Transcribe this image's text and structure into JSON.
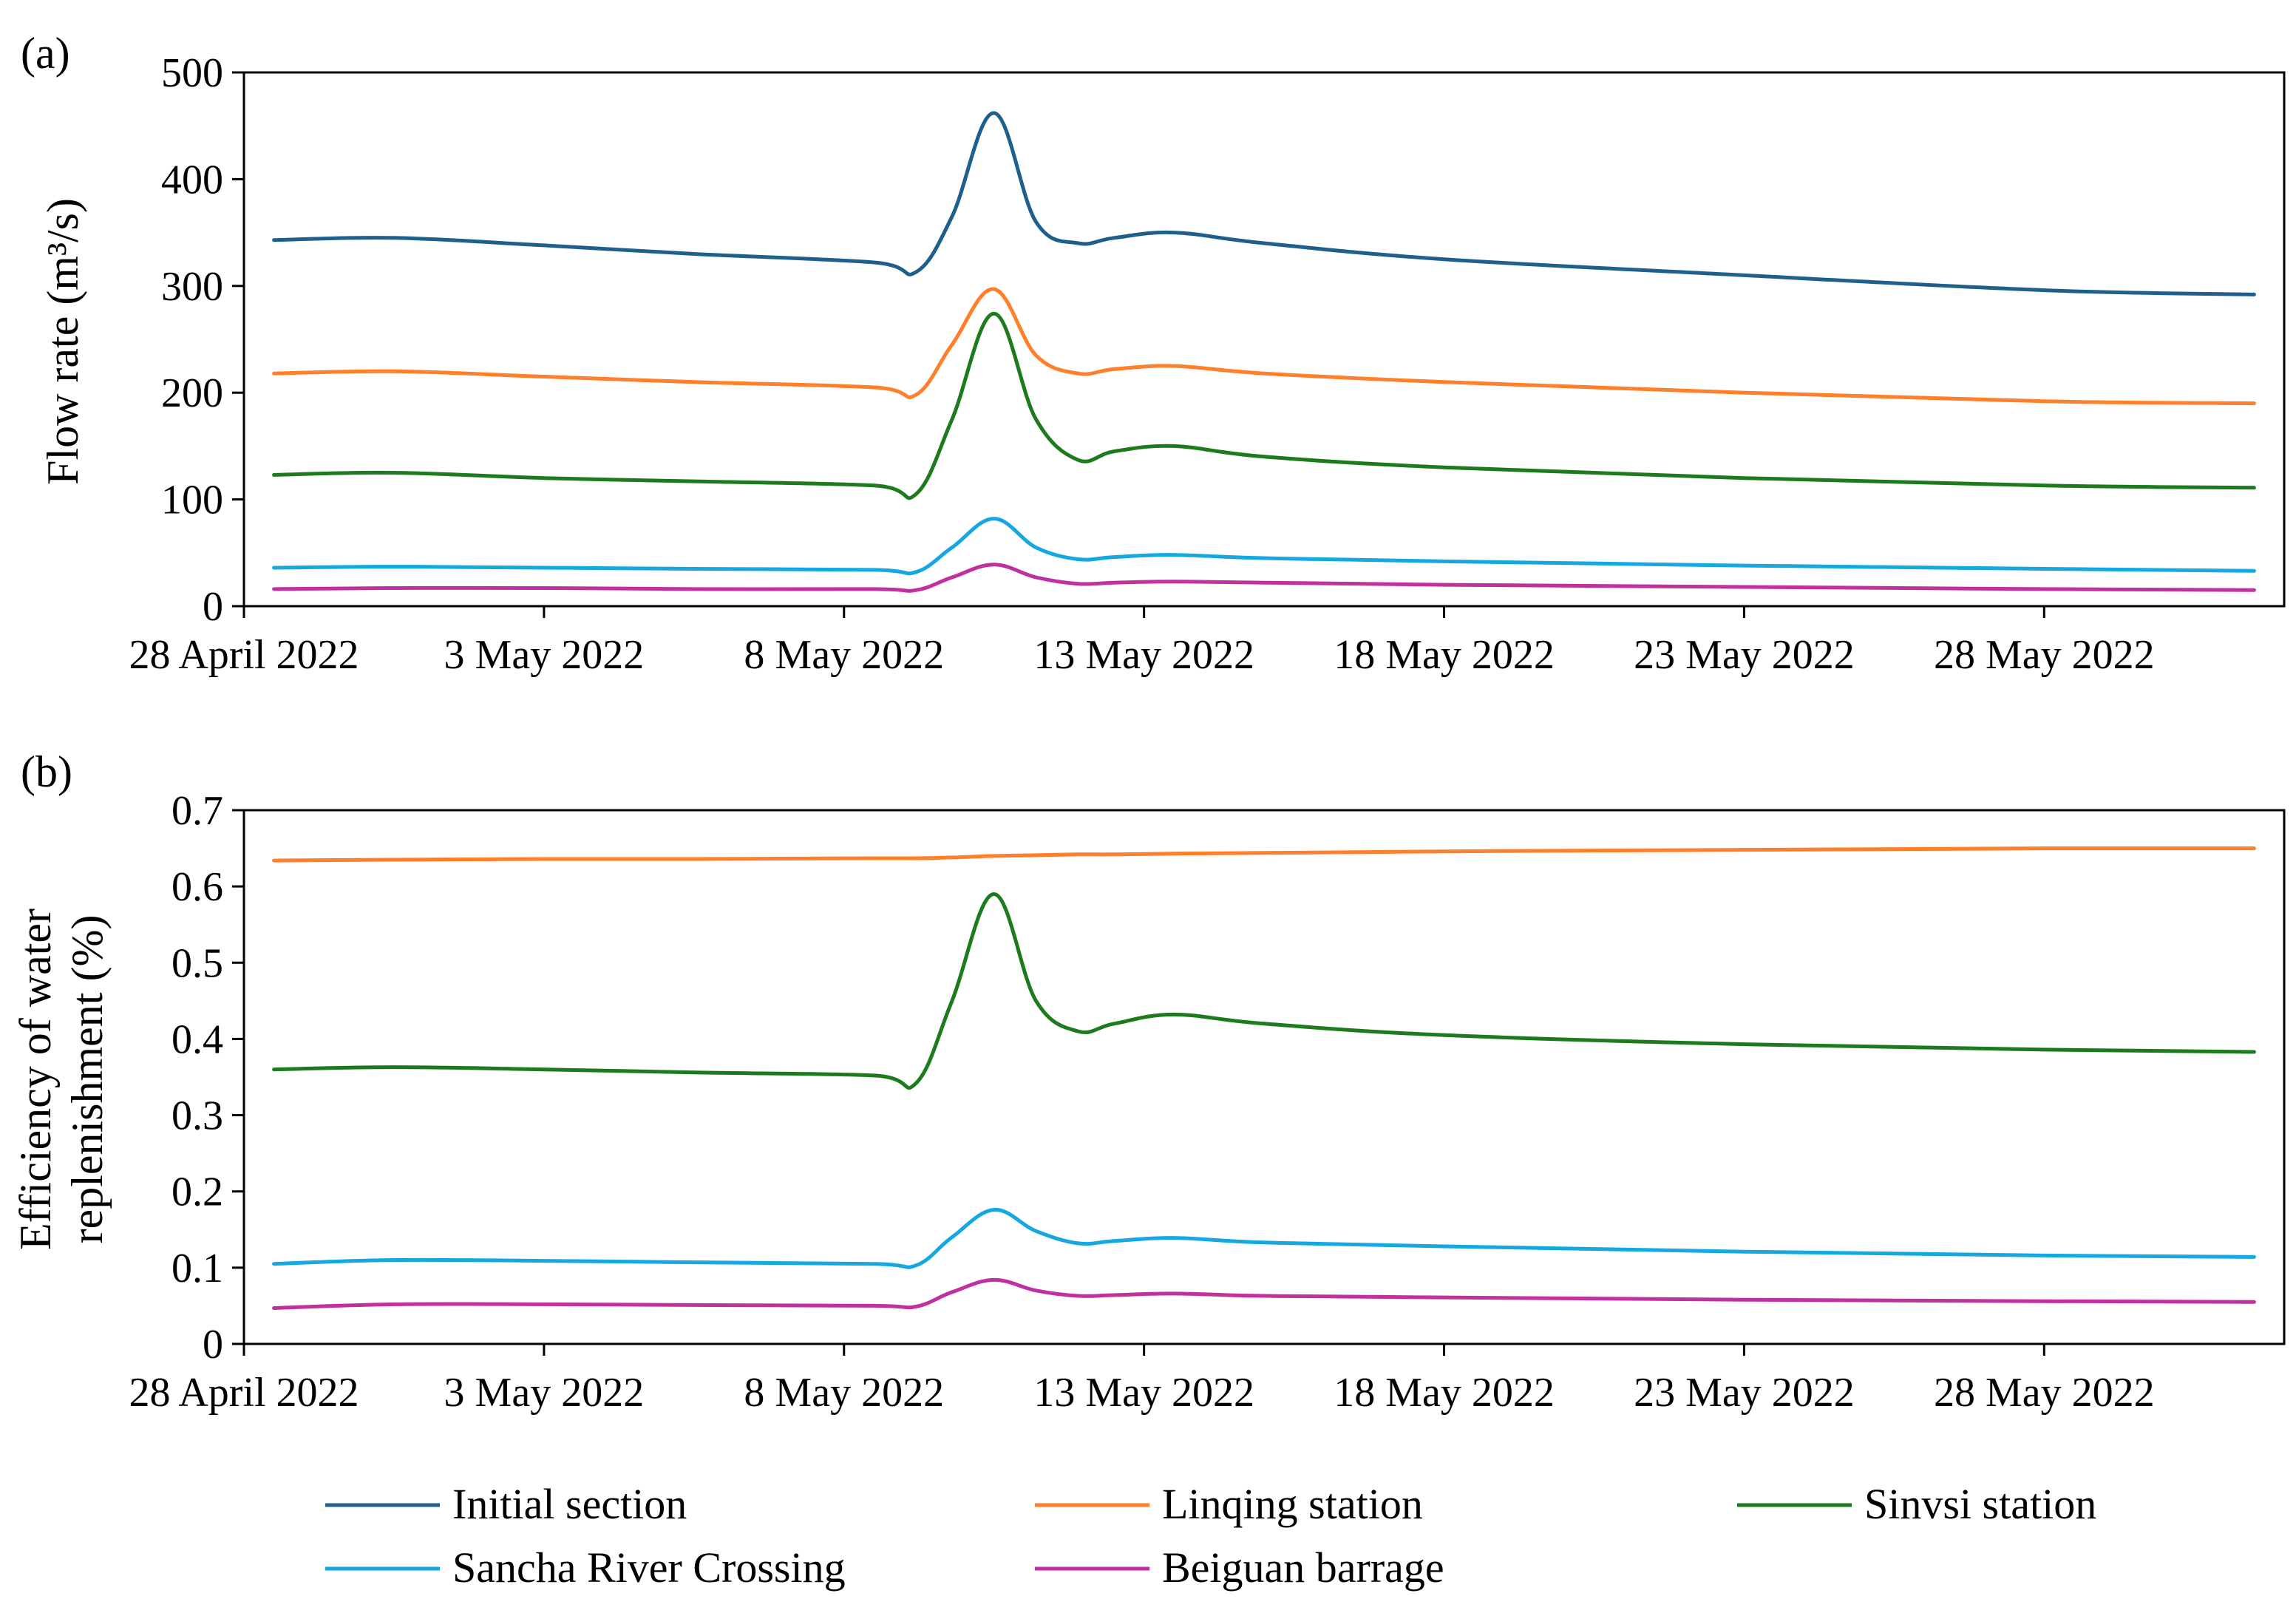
{
  "chart_data": [
    {
      "type": "line",
      "panel_label": "(a)",
      "title": "",
      "xlabel": "",
      "ylabel": "Flow rate (m³/s)",
      "ylim": [
        0,
        500
      ],
      "yticks": [
        0,
        100,
        200,
        300,
        400,
        500
      ],
      "xlim": [
        0,
        34
      ],
      "xtick_positions": [
        0,
        5,
        10,
        15,
        20,
        25,
        30
      ],
      "xtick_labels": [
        "28 April 2022",
        "3 May 2022",
        "8 May 2022",
        "13 May 2022",
        "18 May 2022",
        "23 May 2022",
        "28 May 2022"
      ],
      "x": [
        0.5,
        2.5,
        5,
        7.5,
        10.5,
        11.2,
        11.8,
        12.5,
        13.2,
        13.9,
        14.5,
        15.5,
        17,
        20,
        25,
        30,
        33.5
      ],
      "series": [
        {
          "name": "Initial section",
          "color": "#1f5f8b",
          "values": [
            343,
            345,
            338,
            330,
            322,
            313,
            365,
            462,
            360,
            340,
            345,
            350,
            340,
            325,
            310,
            296,
            292
          ]
        },
        {
          "name": "Linqing station",
          "color": "#ff7f2a",
          "values": [
            218,
            220,
            215,
            210,
            205,
            198,
            245,
            297,
            235,
            218,
            222,
            225,
            218,
            210,
            200,
            192,
            190
          ]
        },
        {
          "name": "Sinvsi station",
          "color": "#1d7a1d",
          "values": [
            123,
            125,
            120,
            117,
            113,
            105,
            175,
            274,
            175,
            137,
            145,
            150,
            140,
            130,
            120,
            113,
            111
          ]
        },
        {
          "name": "Sancha River Crossing",
          "color": "#15a8e0",
          "values": [
            36,
            37,
            36,
            35,
            34,
            32,
            55,
            82,
            55,
            44,
            46,
            48,
            45,
            42,
            38,
            35,
            33
          ]
        },
        {
          "name": "Beiguan barrage",
          "color": "#c0309f",
          "values": [
            16,
            17,
            17,
            16,
            16,
            15,
            27,
            39,
            27,
            21,
            22,
            23,
            22,
            20,
            18,
            16,
            15
          ]
        }
      ]
    },
    {
      "type": "line",
      "panel_label": "(b)",
      "title": "",
      "xlabel": "",
      "ylabel": "Efficiency of water replenishment (%)",
      "ylabel_lines": [
        "Efficiency of water",
        "replenishment (%)"
      ],
      "ylim": [
        0,
        0.7
      ],
      "yticks": [
        0,
        0.1,
        0.2,
        0.3,
        0.4,
        0.5,
        0.6,
        0.7
      ],
      "ytick_labels": [
        "0",
        "0.1",
        "0.2",
        "0.3",
        "0.4",
        "0.5",
        "0.6",
        "0.7"
      ],
      "xlim": [
        0,
        34
      ],
      "xtick_positions": [
        0,
        5,
        10,
        15,
        20,
        25,
        30
      ],
      "xtick_labels": [
        "28 April 2022",
        "3 May 2022",
        "8 May 2022",
        "13 May 2022",
        "18 May 2022",
        "23 May 2022",
        "28 May 2022"
      ],
      "x": [
        0.5,
        2.5,
        5,
        7.5,
        10.5,
        11.2,
        11.8,
        12.5,
        13.2,
        13.9,
        14.5,
        15.5,
        17,
        20,
        25,
        30,
        33.5
      ],
      "series": [
        {
          "name": "Linqing station",
          "color": "#ff7f2a",
          "values": [
            0.634,
            0.635,
            0.636,
            0.636,
            0.637,
            0.637,
            0.638,
            0.64,
            0.641,
            0.642,
            0.642,
            0.643,
            0.644,
            0.646,
            0.648,
            0.65,
            0.65
          ]
        },
        {
          "name": "Sinvsi station",
          "color": "#1d7a1d",
          "values": [
            0.36,
            0.363,
            0.36,
            0.356,
            0.352,
            0.342,
            0.45,
            0.59,
            0.45,
            0.41,
            0.42,
            0.432,
            0.42,
            0.405,
            0.393,
            0.386,
            0.383
          ]
        },
        {
          "name": "Sancha River Crossing",
          "color": "#15a8e0",
          "values": [
            0.105,
            0.11,
            0.109,
            0.107,
            0.105,
            0.103,
            0.14,
            0.176,
            0.148,
            0.132,
            0.135,
            0.139,
            0.133,
            0.128,
            0.121,
            0.116,
            0.114
          ]
        },
        {
          "name": "Beiguan barrage",
          "color": "#c0309f",
          "values": [
            0.047,
            0.052,
            0.052,
            0.051,
            0.05,
            0.049,
            0.068,
            0.084,
            0.07,
            0.063,
            0.064,
            0.066,
            0.063,
            0.061,
            0.058,
            0.056,
            0.055
          ]
        }
      ]
    }
  ],
  "legend": [
    {
      "label": "Initial section",
      "color": "#1f5f8b"
    },
    {
      "label": "Linqing station",
      "color": "#ff7f2a"
    },
    {
      "label": "Sinvsi station",
      "color": "#1d7a1d"
    },
    {
      "label": "Sancha River Crossing",
      "color": "#15a8e0"
    },
    {
      "label": "Beiguan barrage",
      "color": "#c0309f"
    }
  ]
}
